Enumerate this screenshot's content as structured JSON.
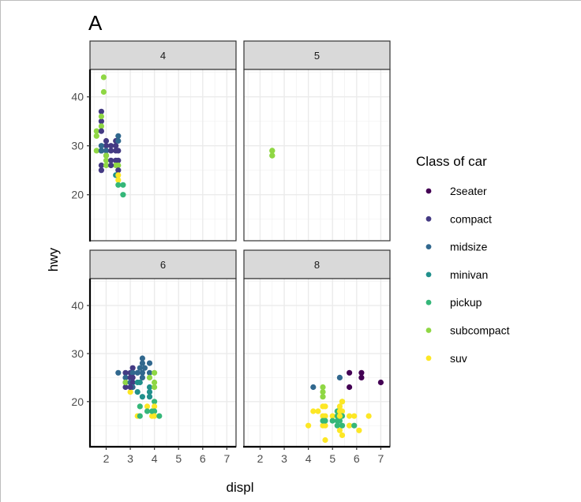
{
  "chart_data": {
    "type": "scatter",
    "tag": "A",
    "xlabel": "displ",
    "ylabel": "hwy",
    "facet_variable": "cyl",
    "xlim": [
      1.33,
      7.38
    ],
    "ylim": [
      10.6,
      45.6
    ],
    "x_ticks": [
      2,
      3,
      4,
      5,
      6,
      7
    ],
    "y_ticks": [
      20,
      30,
      40
    ],
    "grid": true,
    "legend": {
      "title": "Class of car",
      "position": "right",
      "entries": [
        {
          "label": "2seater",
          "color": "#440154"
        },
        {
          "label": "compact",
          "color": "#443A83"
        },
        {
          "label": "midsize",
          "color": "#31688E"
        },
        {
          "label": "minivan",
          "color": "#21908C"
        },
        {
          "label": "pickup",
          "color": "#35B779"
        },
        {
          "label": "subcompact",
          "color": "#8FD744"
        },
        {
          "label": "suv",
          "color": "#FDE725"
        }
      ]
    },
    "panels": [
      {
        "label": "4",
        "points": [
          {
            "x": 1.8,
            "y": 29,
            "class": "subcompact"
          },
          {
            "x": 1.6,
            "y": 33,
            "class": "subcompact"
          },
          {
            "x": 1.6,
            "y": 32,
            "class": "subcompact"
          },
          {
            "x": 1.9,
            "y": 44,
            "class": "subcompact"
          },
          {
            "x": 1.9,
            "y": 41,
            "class": "subcompact"
          },
          {
            "x": 1.6,
            "y": 29,
            "class": "subcompact"
          },
          {
            "x": 1.8,
            "y": 37,
            "class": "compact"
          },
          {
            "x": 1.8,
            "y": 35,
            "class": "compact"
          },
          {
            "x": 1.8,
            "y": 34,
            "class": "subcompact"
          },
          {
            "x": 1.8,
            "y": 33,
            "class": "compact"
          },
          {
            "x": 1.8,
            "y": 36,
            "class": "subcompact"
          },
          {
            "x": 1.8,
            "y": 29,
            "class": "compact"
          },
          {
            "x": 1.8,
            "y": 26,
            "class": "compact"
          },
          {
            "x": 1.8,
            "y": 25,
            "class": "compact"
          },
          {
            "x": 2.0,
            "y": 31,
            "class": "compact"
          },
          {
            "x": 2.0,
            "y": 30,
            "class": "compact"
          },
          {
            "x": 2.0,
            "y": 28,
            "class": "compact"
          },
          {
            "x": 2.0,
            "y": 29,
            "class": "midsize"
          },
          {
            "x": 2.0,
            "y": 26,
            "class": "subcompact"
          },
          {
            "x": 2.0,
            "y": 27,
            "class": "subcompact"
          },
          {
            "x": 1.8,
            "y": 30,
            "class": "midsize"
          },
          {
            "x": 1.8,
            "y": 29,
            "class": "midsize"
          },
          {
            "x": 2.2,
            "y": 29,
            "class": "compact"
          },
          {
            "x": 2.2,
            "y": 27,
            "class": "compact"
          },
          {
            "x": 2.2,
            "y": 26,
            "class": "subcompact"
          },
          {
            "x": 2.4,
            "y": 31,
            "class": "compact"
          },
          {
            "x": 2.4,
            "y": 30,
            "class": "compact"
          },
          {
            "x": 2.4,
            "y": 29,
            "class": "compact"
          },
          {
            "x": 2.4,
            "y": 27,
            "class": "compact"
          },
          {
            "x": 2.4,
            "y": 26,
            "class": "subcompact"
          },
          {
            "x": 2.4,
            "y": 24,
            "class": "minivan"
          },
          {
            "x": 2.5,
            "y": 32,
            "class": "midsize"
          },
          {
            "x": 2.5,
            "y": 31,
            "class": "midsize"
          },
          {
            "x": 2.5,
            "y": 27,
            "class": "compact"
          },
          {
            "x": 2.5,
            "y": 26,
            "class": "subcompact"
          },
          {
            "x": 2.5,
            "y": 25,
            "class": "compact"
          },
          {
            "x": 2.5,
            "y": 24,
            "class": "suv"
          },
          {
            "x": 2.5,
            "y": 23,
            "class": "suv"
          },
          {
            "x": 2.5,
            "y": 29,
            "class": "compact"
          },
          {
            "x": 2.2,
            "y": 30,
            "class": "compact"
          },
          {
            "x": 2.7,
            "y": 22,
            "class": "pickup"
          },
          {
            "x": 2.7,
            "y": 20,
            "class": "pickup"
          },
          {
            "x": 2.5,
            "y": 22,
            "class": "pickup"
          },
          {
            "x": 2.0,
            "y": 28,
            "class": "subcompact"
          },
          {
            "x": 2.2,
            "y": 26,
            "class": "compact"
          }
        ]
      },
      {
        "label": "5",
        "points": [
          {
            "x": 2.5,
            "y": 29,
            "class": "subcompact"
          },
          {
            "x": 2.5,
            "y": 29,
            "class": "subcompact"
          },
          {
            "x": 2.5,
            "y": 28,
            "class": "subcompact"
          },
          {
            "x": 2.5,
            "y": 28,
            "class": "subcompact"
          }
        ]
      },
      {
        "label": "6",
        "points": [
          {
            "x": 2.5,
            "y": 26,
            "class": "midsize"
          },
          {
            "x": 2.8,
            "y": 26,
            "class": "compact"
          },
          {
            "x": 2.8,
            "y": 25,
            "class": "midsize"
          },
          {
            "x": 2.8,
            "y": 24,
            "class": "compact"
          },
          {
            "x": 2.8,
            "y": 23,
            "class": "compact"
          },
          {
            "x": 2.8,
            "y": 24,
            "class": "subcompact"
          },
          {
            "x": 3.0,
            "y": 26,
            "class": "compact"
          },
          {
            "x": 3.0,
            "y": 25,
            "class": "compact"
          },
          {
            "x": 3.0,
            "y": 24,
            "class": "midsize"
          },
          {
            "x": 3.0,
            "y": 22,
            "class": "suv"
          },
          {
            "x": 3.1,
            "y": 27,
            "class": "compact"
          },
          {
            "x": 3.1,
            "y": 26,
            "class": "midsize"
          },
          {
            "x": 3.1,
            "y": 25,
            "class": "compact"
          },
          {
            "x": 3.1,
            "y": 24,
            "class": "compact"
          },
          {
            "x": 3.1,
            "y": 23,
            "class": "midsize"
          },
          {
            "x": 3.3,
            "y": 26,
            "class": "midsize"
          },
          {
            "x": 3.3,
            "y": 24,
            "class": "minivan"
          },
          {
            "x": 3.3,
            "y": 22,
            "class": "minivan"
          },
          {
            "x": 3.3,
            "y": 17,
            "class": "suv"
          },
          {
            "x": 3.4,
            "y": 17,
            "class": "pickup"
          },
          {
            "x": 3.4,
            "y": 19,
            "class": "pickup"
          },
          {
            "x": 3.4,
            "y": 27,
            "class": "midsize"
          },
          {
            "x": 3.5,
            "y": 29,
            "class": "midsize"
          },
          {
            "x": 3.5,
            "y": 28,
            "class": "midsize"
          },
          {
            "x": 3.5,
            "y": 26,
            "class": "midsize"
          },
          {
            "x": 3.5,
            "y": 25,
            "class": "midsize"
          },
          {
            "x": 3.5,
            "y": 21,
            "class": "minivan"
          },
          {
            "x": 3.6,
            "y": 27,
            "class": "midsize"
          },
          {
            "x": 3.7,
            "y": 19,
            "class": "suv"
          },
          {
            "x": 3.7,
            "y": 18,
            "class": "pickup"
          },
          {
            "x": 3.8,
            "y": 28,
            "class": "midsize"
          },
          {
            "x": 3.8,
            "y": 26,
            "class": "midsize"
          },
          {
            "x": 3.8,
            "y": 25,
            "class": "subcompact"
          },
          {
            "x": 3.8,
            "y": 23,
            "class": "minivan"
          },
          {
            "x": 3.8,
            "y": 22,
            "class": "minivan"
          },
          {
            "x": 3.8,
            "y": 21,
            "class": "minivan"
          },
          {
            "x": 3.9,
            "y": 17,
            "class": "suv"
          },
          {
            "x": 3.9,
            "y": 18,
            "class": "pickup"
          },
          {
            "x": 4.0,
            "y": 26,
            "class": "subcompact"
          },
          {
            "x": 4.0,
            "y": 24,
            "class": "subcompact"
          },
          {
            "x": 4.0,
            "y": 23,
            "class": "subcompact"
          },
          {
            "x": 4.0,
            "y": 20,
            "class": "pickup"
          },
          {
            "x": 4.0,
            "y": 19,
            "class": "suv"
          },
          {
            "x": 4.0,
            "y": 18,
            "class": "pickup"
          },
          {
            "x": 4.0,
            "y": 17,
            "class": "suv"
          },
          {
            "x": 4.2,
            "y": 17,
            "class": "pickup"
          },
          {
            "x": 3.4,
            "y": 24,
            "class": "minivan"
          },
          {
            "x": 3.0,
            "y": 23,
            "class": "compact"
          }
        ]
      },
      {
        "label": "8",
        "points": [
          {
            "x": 5.7,
            "y": 26,
            "class": "2seater"
          },
          {
            "x": 5.7,
            "y": 23,
            "class": "2seater"
          },
          {
            "x": 6.2,
            "y": 26,
            "class": "2seater"
          },
          {
            "x": 6.2,
            "y": 25,
            "class": "2seater"
          },
          {
            "x": 7.0,
            "y": 24,
            "class": "2seater"
          },
          {
            "x": 4.2,
            "y": 23,
            "class": "midsize"
          },
          {
            "x": 5.3,
            "y": 25,
            "class": "midsize"
          },
          {
            "x": 4.6,
            "y": 23,
            "class": "subcompact"
          },
          {
            "x": 4.6,
            "y": 22,
            "class": "subcompact"
          },
          {
            "x": 4.6,
            "y": 21,
            "class": "subcompact"
          },
          {
            "x": 5.4,
            "y": 20,
            "class": "subcompact"
          },
          {
            "x": 4.0,
            "y": 15,
            "class": "suv"
          },
          {
            "x": 4.2,
            "y": 18,
            "class": "suv"
          },
          {
            "x": 4.4,
            "y": 18,
            "class": "suv"
          },
          {
            "x": 4.6,
            "y": 19,
            "class": "suv"
          },
          {
            "x": 4.7,
            "y": 19,
            "class": "suv"
          },
          {
            "x": 4.6,
            "y": 17,
            "class": "suv"
          },
          {
            "x": 4.7,
            "y": 17,
            "class": "suv"
          },
          {
            "x": 4.6,
            "y": 15,
            "class": "suv"
          },
          {
            "x": 4.7,
            "y": 15,
            "class": "suv"
          },
          {
            "x": 4.7,
            "y": 12,
            "class": "suv"
          },
          {
            "x": 4.6,
            "y": 16,
            "class": "pickup"
          },
          {
            "x": 4.7,
            "y": 16,
            "class": "pickup"
          },
          {
            "x": 5.0,
            "y": 17,
            "class": "suv"
          },
          {
            "x": 5.2,
            "y": 18,
            "class": "pickup"
          },
          {
            "x": 5.2,
            "y": 17,
            "class": "pickup"
          },
          {
            "x": 5.2,
            "y": 16,
            "class": "pickup"
          },
          {
            "x": 5.2,
            "y": 15,
            "class": "pickup"
          },
          {
            "x": 5.3,
            "y": 19,
            "class": "suv"
          },
          {
            "x": 5.3,
            "y": 18,
            "class": "suv"
          },
          {
            "x": 5.3,
            "y": 16,
            "class": "pickup"
          },
          {
            "x": 5.3,
            "y": 14,
            "class": "suv"
          },
          {
            "x": 5.4,
            "y": 20,
            "class": "suv"
          },
          {
            "x": 5.4,
            "y": 18,
            "class": "suv"
          },
          {
            "x": 5.4,
            "y": 17,
            "class": "pickup"
          },
          {
            "x": 5.4,
            "y": 15,
            "class": "pickup"
          },
          {
            "x": 5.4,
            "y": 13,
            "class": "suv"
          },
          {
            "x": 5.7,
            "y": 17,
            "class": "suv"
          },
          {
            "x": 5.7,
            "y": 15,
            "class": "suv"
          },
          {
            "x": 5.9,
            "y": 17,
            "class": "suv"
          },
          {
            "x": 5.9,
            "y": 15,
            "class": "pickup"
          },
          {
            "x": 6.1,
            "y": 14,
            "class": "suv"
          },
          {
            "x": 6.5,
            "y": 17,
            "class": "suv"
          },
          {
            "x": 5.3,
            "y": 17,
            "class": "suv"
          },
          {
            "x": 5.0,
            "y": 16,
            "class": "pickup"
          }
        ]
      }
    ]
  }
}
